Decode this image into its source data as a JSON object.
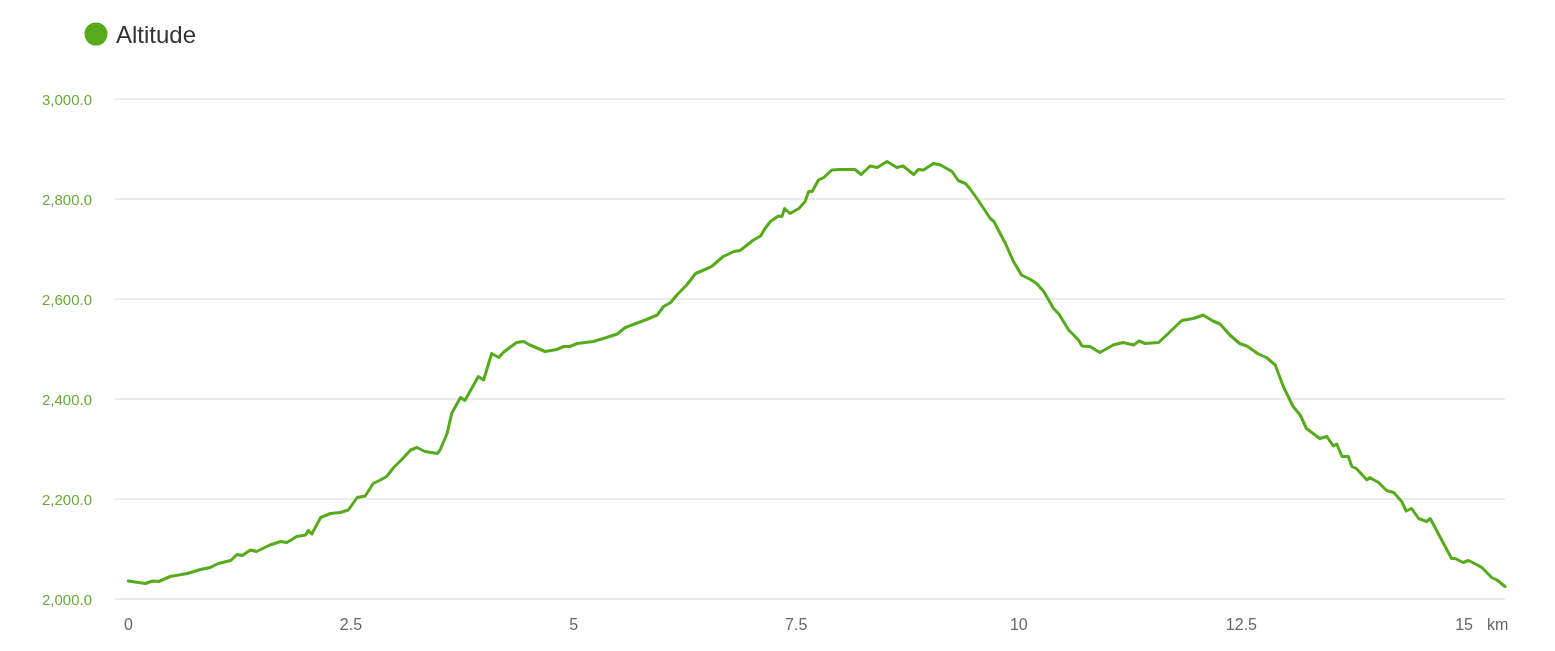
{
  "chart_data": {
    "type": "line",
    "xlabel": "km",
    "legend": "top left",
    "grid": "y",
    "xlim": [
      -0.15,
      15.46
    ],
    "xticks": [
      0,
      2.5,
      5,
      7.5,
      10,
      12.5,
      15
    ],
    "ylim": [
      2000,
      3000
    ],
    "yticks": [
      {
        "value": 2000,
        "label": "2,000.0"
      },
      {
        "value": 2200,
        "label": "2,200.0"
      },
      {
        "value": 2400,
        "label": "2,400.0"
      },
      {
        "value": 2600,
        "label": "2,600.0"
      },
      {
        "value": 2800,
        "label": "2,800.0"
      },
      {
        "value": 3000,
        "label": "3,000.0"
      }
    ],
    "series": [
      {
        "name": "Altitude",
        "color": "#56aa1c",
        "x": [
          0,
          0.19,
          0.27,
          0.34,
          0.47,
          0.66,
          0.81,
          0.92,
          1.01,
          1.15,
          1.22,
          1.28,
          1.37,
          1.44,
          1.59,
          1.71,
          1.78,
          1.89,
          1.99,
          2.02,
          2.06,
          2.16,
          2.27,
          2.38,
          2.47,
          2.57,
          2.66,
          2.75,
          2.83,
          2.9,
          2.98,
          3.07,
          3.17,
          3.24,
          3.33,
          3.47,
          3.5,
          3.58,
          3.63,
          3.73,
          3.78,
          3.93,
          3.99,
          4.08,
          4.16,
          4.21,
          4.36,
          4.44,
          4.51,
          4.68,
          4.81,
          4.89,
          4.96,
          5.04,
          5.22,
          5.37,
          5.49,
          5.58,
          5.82,
          5.94,
          6.01,
          6.09,
          6.16,
          6.27,
          6.37,
          6.5,
          6.55,
          6.68,
          6.8,
          6.87,
          7.02,
          7.1,
          7.15,
          7.21,
          7.3,
          7.34,
          7.37,
          7.43,
          7.53,
          7.6,
          7.64,
          7.68,
          7.75,
          7.81,
          7.9,
          7.99,
          8.16,
          8.23,
          8.33,
          8.41,
          8.52,
          8.63,
          8.7,
          8.82,
          8.87,
          8.93,
          9.04,
          9.12,
          9.25,
          9.32,
          9.4,
          9.45,
          9.53,
          9.68,
          9.72,
          9.85,
          9.94,
          10.03,
          10.13,
          10.2,
          10.28,
          10.39,
          10.45,
          10.56,
          10.67,
          10.71,
          10.8,
          10.91,
          11.06,
          11.17,
          11.29,
          11.35,
          11.42,
          11.57,
          11.66,
          11.83,
          11.96,
          12.07,
          12.18,
          12.26,
          12.37,
          12.48,
          12.56,
          12.69,
          12.78,
          12.88,
          12.97,
          13.08,
          13.16,
          13.23,
          13.38,
          13.46,
          13.53,
          13.57,
          13.63,
          13.7,
          13.74,
          13.79,
          13.91,
          13.94,
          14.04,
          14.13,
          14.21,
          14.3,
          14.35,
          14.41,
          14.49,
          14.58,
          14.62,
          14.86,
          14.9,
          14.99,
          15.05,
          15.12,
          15.2,
          15.31,
          15.37,
          15.46
        ],
        "values": [
          2036,
          2031,
          2036,
          2035,
          2045,
          2051,
          2059,
          2063,
          2071,
          2077,
          2089,
          2087,
          2098,
          2095,
          2108,
          2115,
          2113,
          2125,
          2128,
          2137,
          2130,
          2163,
          2171,
          2173,
          2178,
          2203,
          2206,
          2231,
          2238,
          2245,
          2263,
          2279,
          2298,
          2303,
          2295,
          2291,
          2298,
          2331,
          2371,
          2403,
          2397,
          2445,
          2438,
          2491,
          2483,
          2493,
          2513,
          2515,
          2508,
          2495,
          2499,
          2505,
          2505,
          2511,
          2515,
          2523,
          2530,
          2543,
          2559,
          2568,
          2585,
          2593,
          2608,
          2628,
          2651,
          2661,
          2665,
          2685,
          2695,
          2697,
          2718,
          2726,
          2741,
          2755,
          2766,
          2765,
          2781,
          2771,
          2781,
          2795,
          2815,
          2815,
          2838,
          2843,
          2858,
          2859,
          2859,
          2849,
          2866,
          2863,
          2875,
          2863,
          2866,
          2849,
          2859,
          2858,
          2871,
          2868,
          2855,
          2837,
          2831,
          2821,
          2801,
          2761,
          2755,
          2711,
          2675,
          2648,
          2639,
          2631,
          2615,
          2581,
          2570,
          2538,
          2518,
          2506,
          2505,
          2493,
          2508,
          2513,
          2508,
          2516,
          2511,
          2513,
          2528,
          2557,
          2561,
          2568,
          2556,
          2550,
          2528,
          2511,
          2506,
          2490,
          2483,
          2468,
          2425,
          2385,
          2368,
          2341,
          2321,
          2325,
          2306,
          2310,
          2285,
          2285,
          2265,
          2261,
          2238,
          2243,
          2233,
          2217,
          2213,
          2195,
          2176,
          2181,
          2161,
          2155,
          2161,
          2081,
          2081,
          2073,
          2077,
          2071,
          2063,
          2043,
          2038,
          2025
        ]
      }
    ]
  }
}
